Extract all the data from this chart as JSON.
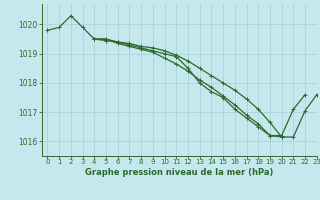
{
  "title": "Graphe pression niveau de la mer (hPa)",
  "bg_color": "#c5e8ee",
  "grid_color": "#b0d5db",
  "line_color": "#2d6a2d",
  "xlim": [
    -0.5,
    23
  ],
  "ylim": [
    1015.5,
    1020.7
  ],
  "yticks": [
    1016,
    1017,
    1018,
    1019,
    1020
  ],
  "xticks": [
    0,
    1,
    2,
    3,
    4,
    5,
    6,
    7,
    8,
    9,
    10,
    11,
    12,
    13,
    14,
    15,
    16,
    17,
    18,
    19,
    20,
    21,
    22,
    23
  ],
  "series": [
    [
      1019.8,
      1019.9,
      1020.3,
      1019.9,
      1019.5,
      1019.5,
      1019.4,
      1019.3,
      1019.2,
      1019.1,
      1019.0,
      1018.9,
      1018.5,
      1018.0,
      1017.7,
      1017.5,
      1017.1,
      1016.8,
      1016.5,
      1016.2,
      1016.2,
      1017.1,
      1017.6,
      null
    ],
    [
      null,
      null,
      null,
      null,
      1019.5,
      1019.5,
      1019.35,
      1019.25,
      1019.15,
      1019.05,
      1018.85,
      1018.65,
      1018.4,
      1018.1,
      1017.85,
      1017.55,
      1017.25,
      1016.9,
      1016.6,
      1016.2,
      1016.15,
      null,
      null,
      null
    ],
    [
      null,
      null,
      null,
      null,
      1019.5,
      1019.45,
      1019.4,
      1019.35,
      1019.25,
      1019.2,
      1019.1,
      1018.95,
      1018.75,
      1018.5,
      1018.25,
      1018.0,
      1017.75,
      1017.45,
      1017.1,
      1016.65,
      1016.15,
      1016.15,
      1017.05,
      1017.6
    ]
  ]
}
